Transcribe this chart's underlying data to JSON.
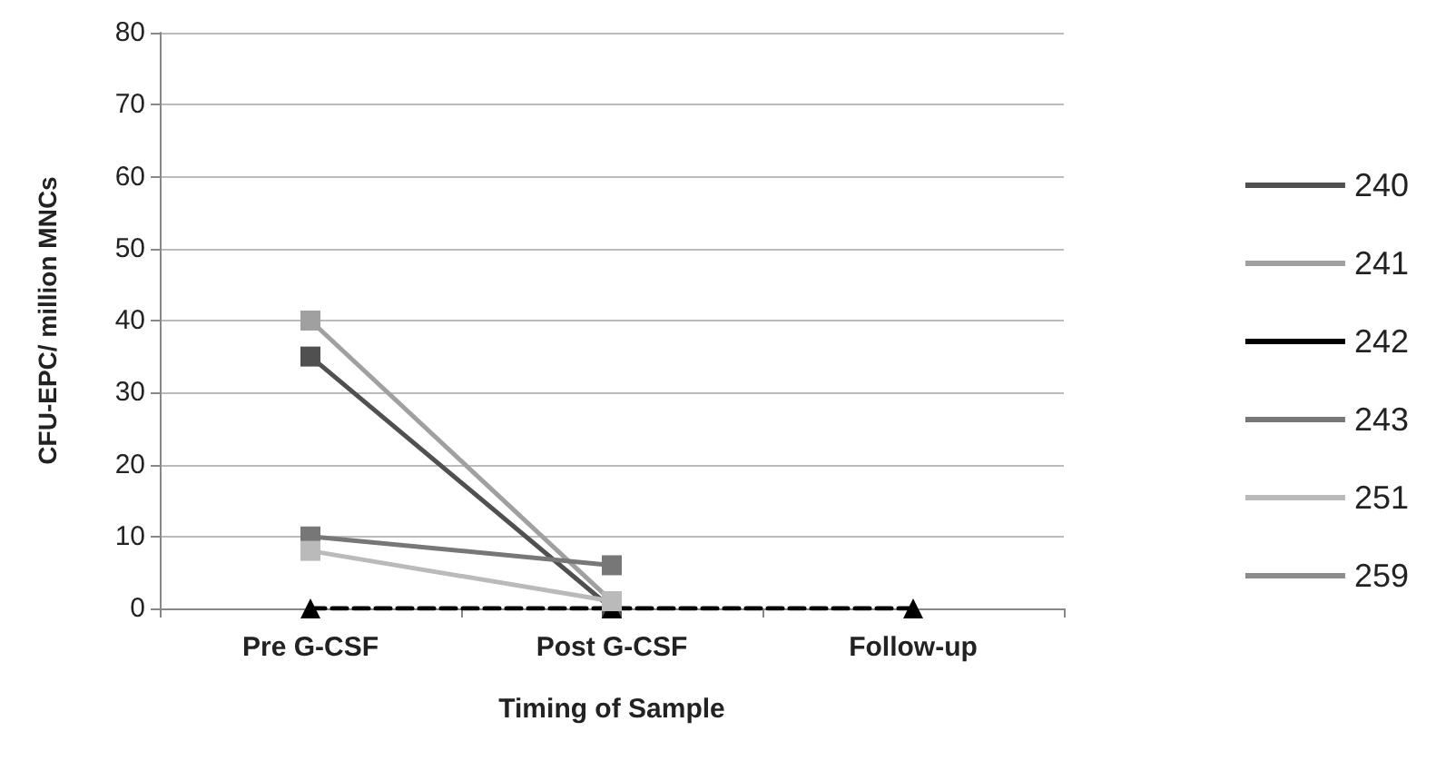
{
  "chart_data": {
    "type": "line",
    "xlabel": "Timing of Sample",
    "ylabel": "CFU-EPC/ million MNCs",
    "categories": [
      "Pre G-CSF",
      "Post G-CSF",
      "Follow-up"
    ],
    "series": [
      {
        "name": "240",
        "color": "#505050",
        "values": [
          35,
          0,
          null
        ],
        "marker": "square"
      },
      {
        "name": "241",
        "color": "#a0a0a0",
        "values": [
          40,
          1,
          null
        ],
        "marker": "square"
      },
      {
        "name": "242",
        "color": "#000000",
        "values": [
          0,
          0,
          0
        ],
        "marker": "triangle",
        "line_style": "dashed"
      },
      {
        "name": "243",
        "color": "#777777",
        "values": [
          10,
          6,
          null
        ],
        "marker": "square"
      },
      {
        "name": "251",
        "color": "#bababa",
        "values": [
          8,
          1,
          null
        ],
        "marker": "square"
      },
      {
        "name": "259",
        "color": "#8c8c8c",
        "values": [
          null,
          null,
          null
        ],
        "marker": "square"
      }
    ],
    "ylim": [
      0,
      80
    ],
    "yticks": [
      0,
      10,
      20,
      30,
      40,
      50,
      60,
      70,
      80
    ],
    "grid": "y",
    "legend": "right",
    "line_style": "solid"
  }
}
